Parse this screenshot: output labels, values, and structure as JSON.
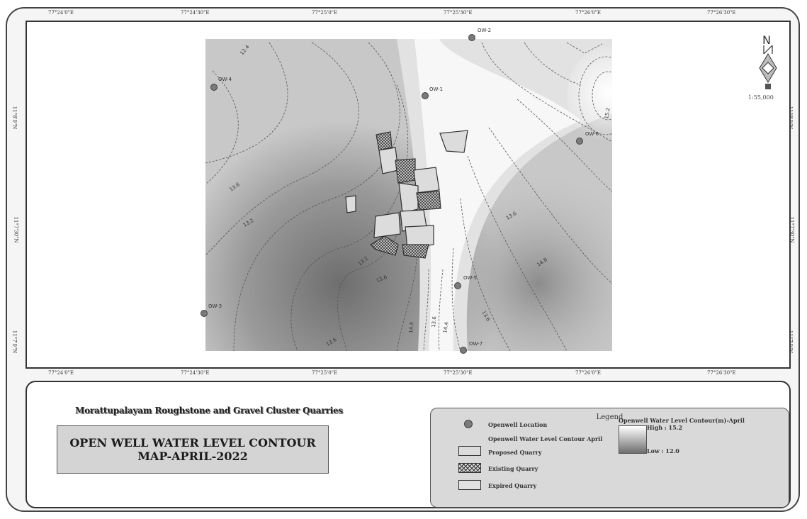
{
  "map": {
    "lon_ticks_top": [
      "77°24'0\"E",
      "77°24'30\"E",
      "77°25'0\"E",
      "77°25'30\"E",
      "77°26'0\"E",
      "77°26'30\"E"
    ],
    "lon_ticks_bottom": [
      "77°24'0\"E",
      "77°24'30\"E",
      "77°25'0\"E",
      "77°25'30\"E",
      "77°26'0\"E",
      "77°26'30\"E"
    ],
    "lat_ticks": [
      "11°8'0\"N",
      "11°7'30\"N",
      "11°7'0\"N"
    ],
    "wells": [
      {
        "label": "OW-2"
      },
      {
        "label": "OW-4"
      },
      {
        "label": "OW-1"
      },
      {
        "label": "OW-6"
      },
      {
        "label": "OW-5"
      },
      {
        "label": "OW-3"
      },
      {
        "label": "OW-7"
      }
    ],
    "contour_labels": [
      "12.4",
      "13.6",
      "13.2",
      "13.2",
      "13.6",
      "13.6",
      "14.4",
      "13.6",
      "14.4",
      "13.6",
      "14.8",
      "13.6",
      "15.2"
    ],
    "north_label": "N",
    "scale_text": "1:55,000",
    "colors": {
      "high": "#ffffff",
      "low": "#6e6e6e",
      "contour": "#555555",
      "well": "#7a7a7a"
    }
  },
  "project_name": "Morattupalayam Roughstone and Gravel Cluster Quarries",
  "title": {
    "line1": "OPEN WELL WATER LEVEL CONTOUR",
    "line2": "MAP-APRIL-2022"
  },
  "legend": {
    "title": "Legend",
    "openwell_location": "Openwell Location",
    "contour_line": "Openwell Water Level Contour April",
    "proposed": "Proposed Quarry",
    "existing": "Existing Quarry",
    "expired": "Expired Quarry",
    "raster_title": "Openwell Water Level Contour(m)-April",
    "high": "High : 15.2",
    "low": "Low : 12.0"
  }
}
